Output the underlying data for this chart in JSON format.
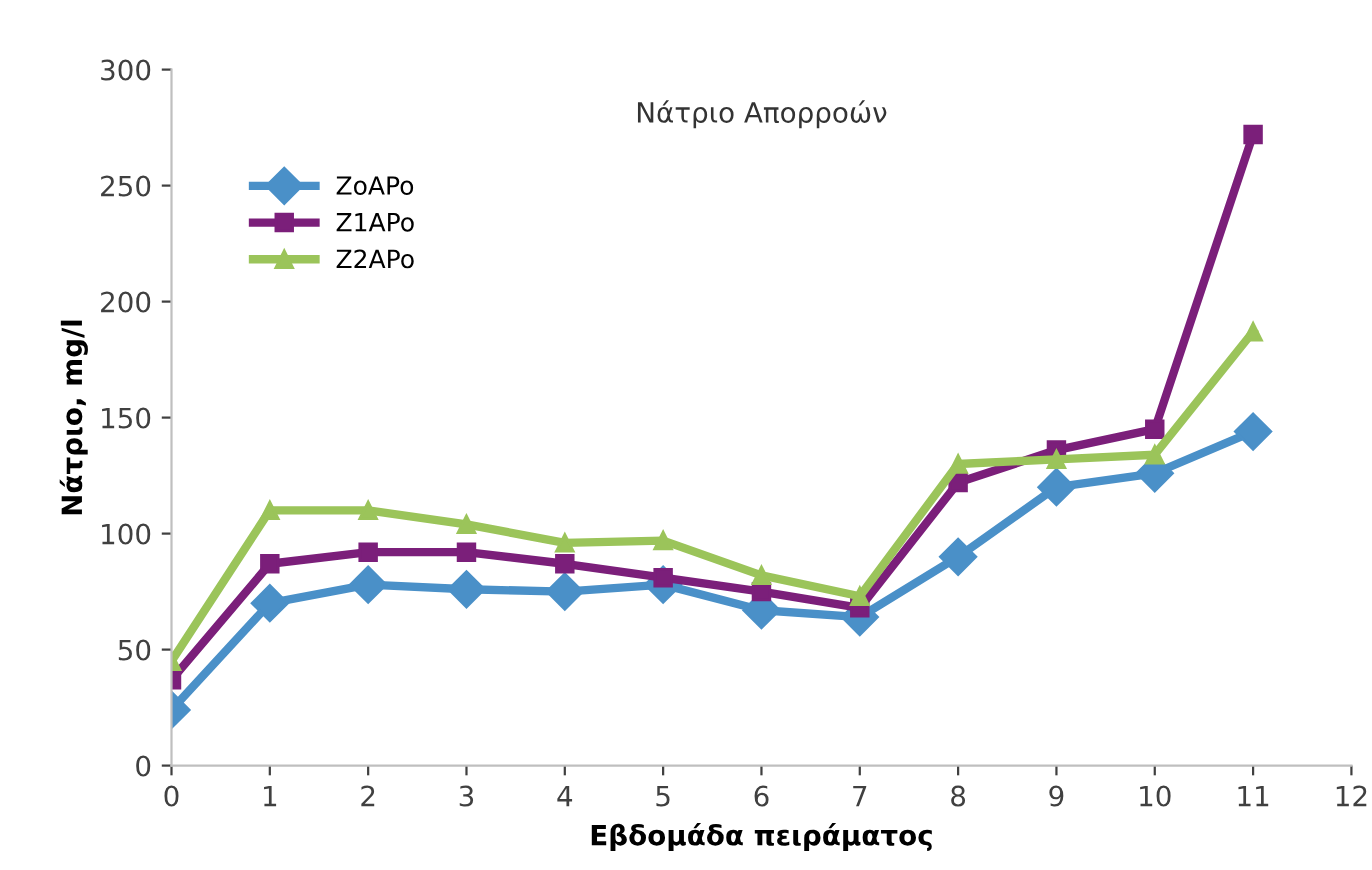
{
  "chart_data": {
    "type": "line",
    "title": "Νάτριο Απορροών",
    "xlabel": "Εβδομάδα πειράματος",
    "ylabel": "Νάτριο, mg/l",
    "x": [
      0,
      1,
      2,
      3,
      4,
      5,
      6,
      7,
      8,
      9,
      10,
      11
    ],
    "series": [
      {
        "name": "ZoAPo",
        "color": "#4a90c8",
        "marker": "diamond",
        "values": [
          24,
          70,
          78,
          76,
          75,
          78,
          67,
          64,
          90,
          120,
          126,
          144
        ]
      },
      {
        "name": "Z1APo",
        "color": "#7b1f7a",
        "marker": "square",
        "values": [
          37,
          87,
          92,
          92,
          87,
          81,
          75,
          68,
          122,
          136,
          145,
          272
        ]
      },
      {
        "name": "Z2APo",
        "color": "#9bc45a",
        "marker": "triangle",
        "values": [
          45,
          110,
          110,
          104,
          96,
          97,
          82,
          73,
          130,
          132,
          134,
          187
        ]
      }
    ],
    "xlim": [
      0,
      12
    ],
    "xticks": [
      0,
      1,
      2,
      3,
      4,
      5,
      6,
      7,
      8,
      9,
      10,
      11,
      12
    ],
    "ylim": [
      0,
      300
    ],
    "yticks": [
      0,
      50,
      100,
      150,
      200,
      250,
      300
    ],
    "grid": false,
    "legend": "top left",
    "line_style": "solid"
  }
}
